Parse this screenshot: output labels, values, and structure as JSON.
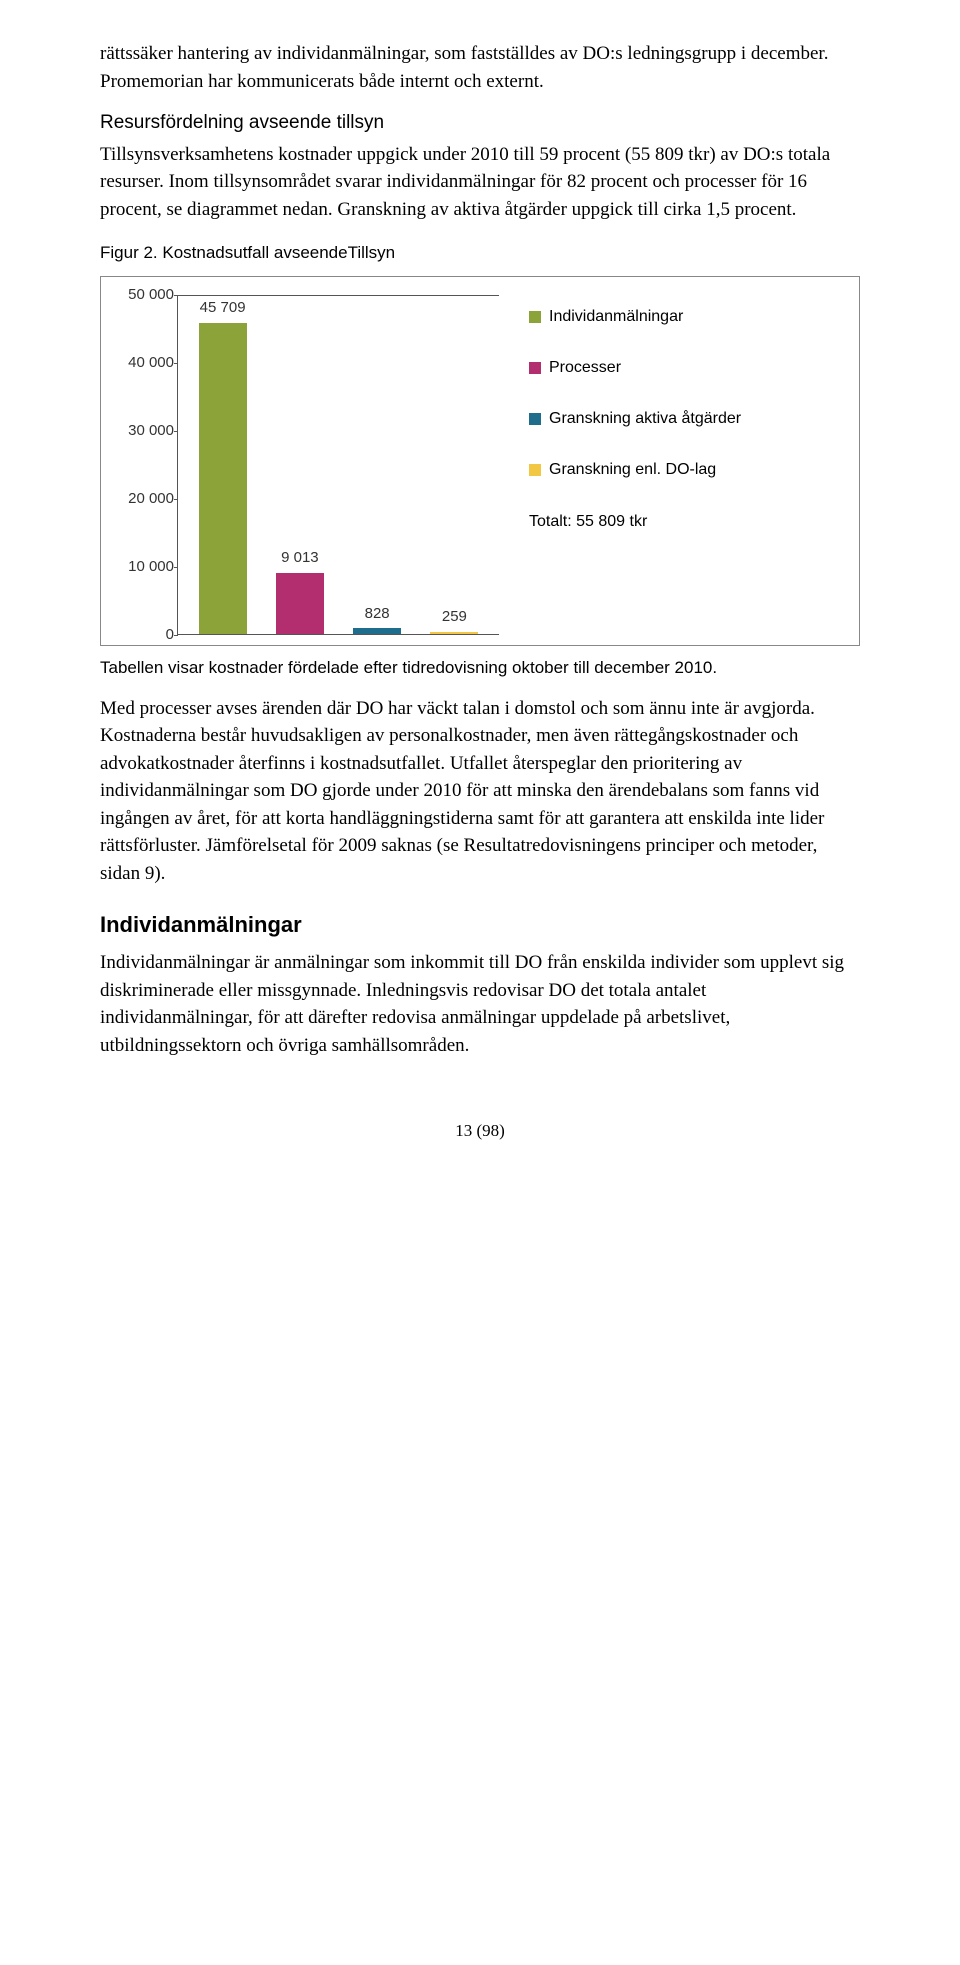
{
  "colors": {
    "olive": "#8ca33a",
    "magenta": "#b32e6e",
    "teal": "#1f6d8c",
    "yellow": "#f2c744",
    "axis": "#555555",
    "text": "#333333"
  },
  "p1": "rättssäker hantering av individanmälningar, som fastställdes av DO:s ledningsgrupp i december. Promemorian har kommunicerats både internt och externt.",
  "h_resurs": "Resursfördelning avseende tillsyn",
  "p2": "Tillsynsverksamhetens kostnader uppgick under 2010 till 59 procent (55 809 tkr) av DO:s totala resurser. Inom tillsynsområdet svarar individanmälningar för 82 procent och processer för 16 procent, se diagrammet nedan. Granskning av aktiva åtgärder uppgick till cirka 1,5 procent.",
  "fig_title": "Figur 2. Kostnadsutfall avseendeTillsyn",
  "chart": {
    "ymax": 50000,
    "ytick_step": 10000,
    "bars": [
      {
        "label": "45 709",
        "value": 45709,
        "color": "#8ca33a"
      },
      {
        "label": "9 013",
        "value": 9013,
        "color": "#b32e6e"
      },
      {
        "label": "828",
        "value": 828,
        "color": "#1f6d8c"
      },
      {
        "label": "259",
        "value": 259,
        "color": "#f2c744"
      }
    ],
    "legend": [
      {
        "label": "Individanmälningar",
        "color": "#8ca33a"
      },
      {
        "label": "Processer",
        "color": "#b32e6e"
      },
      {
        "label": "Granskning aktiva åtgärder",
        "color": "#1f6d8c"
      },
      {
        "label": "Granskning enl. DO-lag",
        "color": "#f2c744"
      },
      {
        "label": "Totalt: 55 809 tkr",
        "color": null
      }
    ],
    "yticks": [
      "0",
      "10 000",
      "20 000",
      "30 000",
      "40 000",
      "50 000"
    ]
  },
  "caption": "Tabellen visar kostnader fördelade efter tidredovisning oktober till december 2010.",
  "p3": "Med processer avses ärenden där DO har väckt talan i domstol och som ännu inte är avgjorda. Kostnaderna består huvudsakligen av personalkostnader, men även rättegångskostnader och advokatkostnader återfinns i kostnadsutfallet. Utfallet återspeglar den prioritering av individanmälningar som DO gjorde under 2010 för att minska den ärendebalans som fanns vid ingången av året, för att korta handläggningstiderna samt för att garantera att enskilda inte lider rättsförluster. Jämförelsetal för 2009 saknas (se Resultatredovisningens principer och metoder, sidan 9).",
  "h_indiv": "Individanmälningar",
  "p4": "Individanmälningar är anmälningar som inkommit till DO från enskilda individer som upplevt sig diskriminerade eller missgynnade. Inledningsvis redovisar DO det totala antalet individanmälningar, för att därefter redovisa anmälningar uppdelade på arbetslivet, utbildningssektorn och övriga samhällsområden.",
  "page": "13 (98)"
}
